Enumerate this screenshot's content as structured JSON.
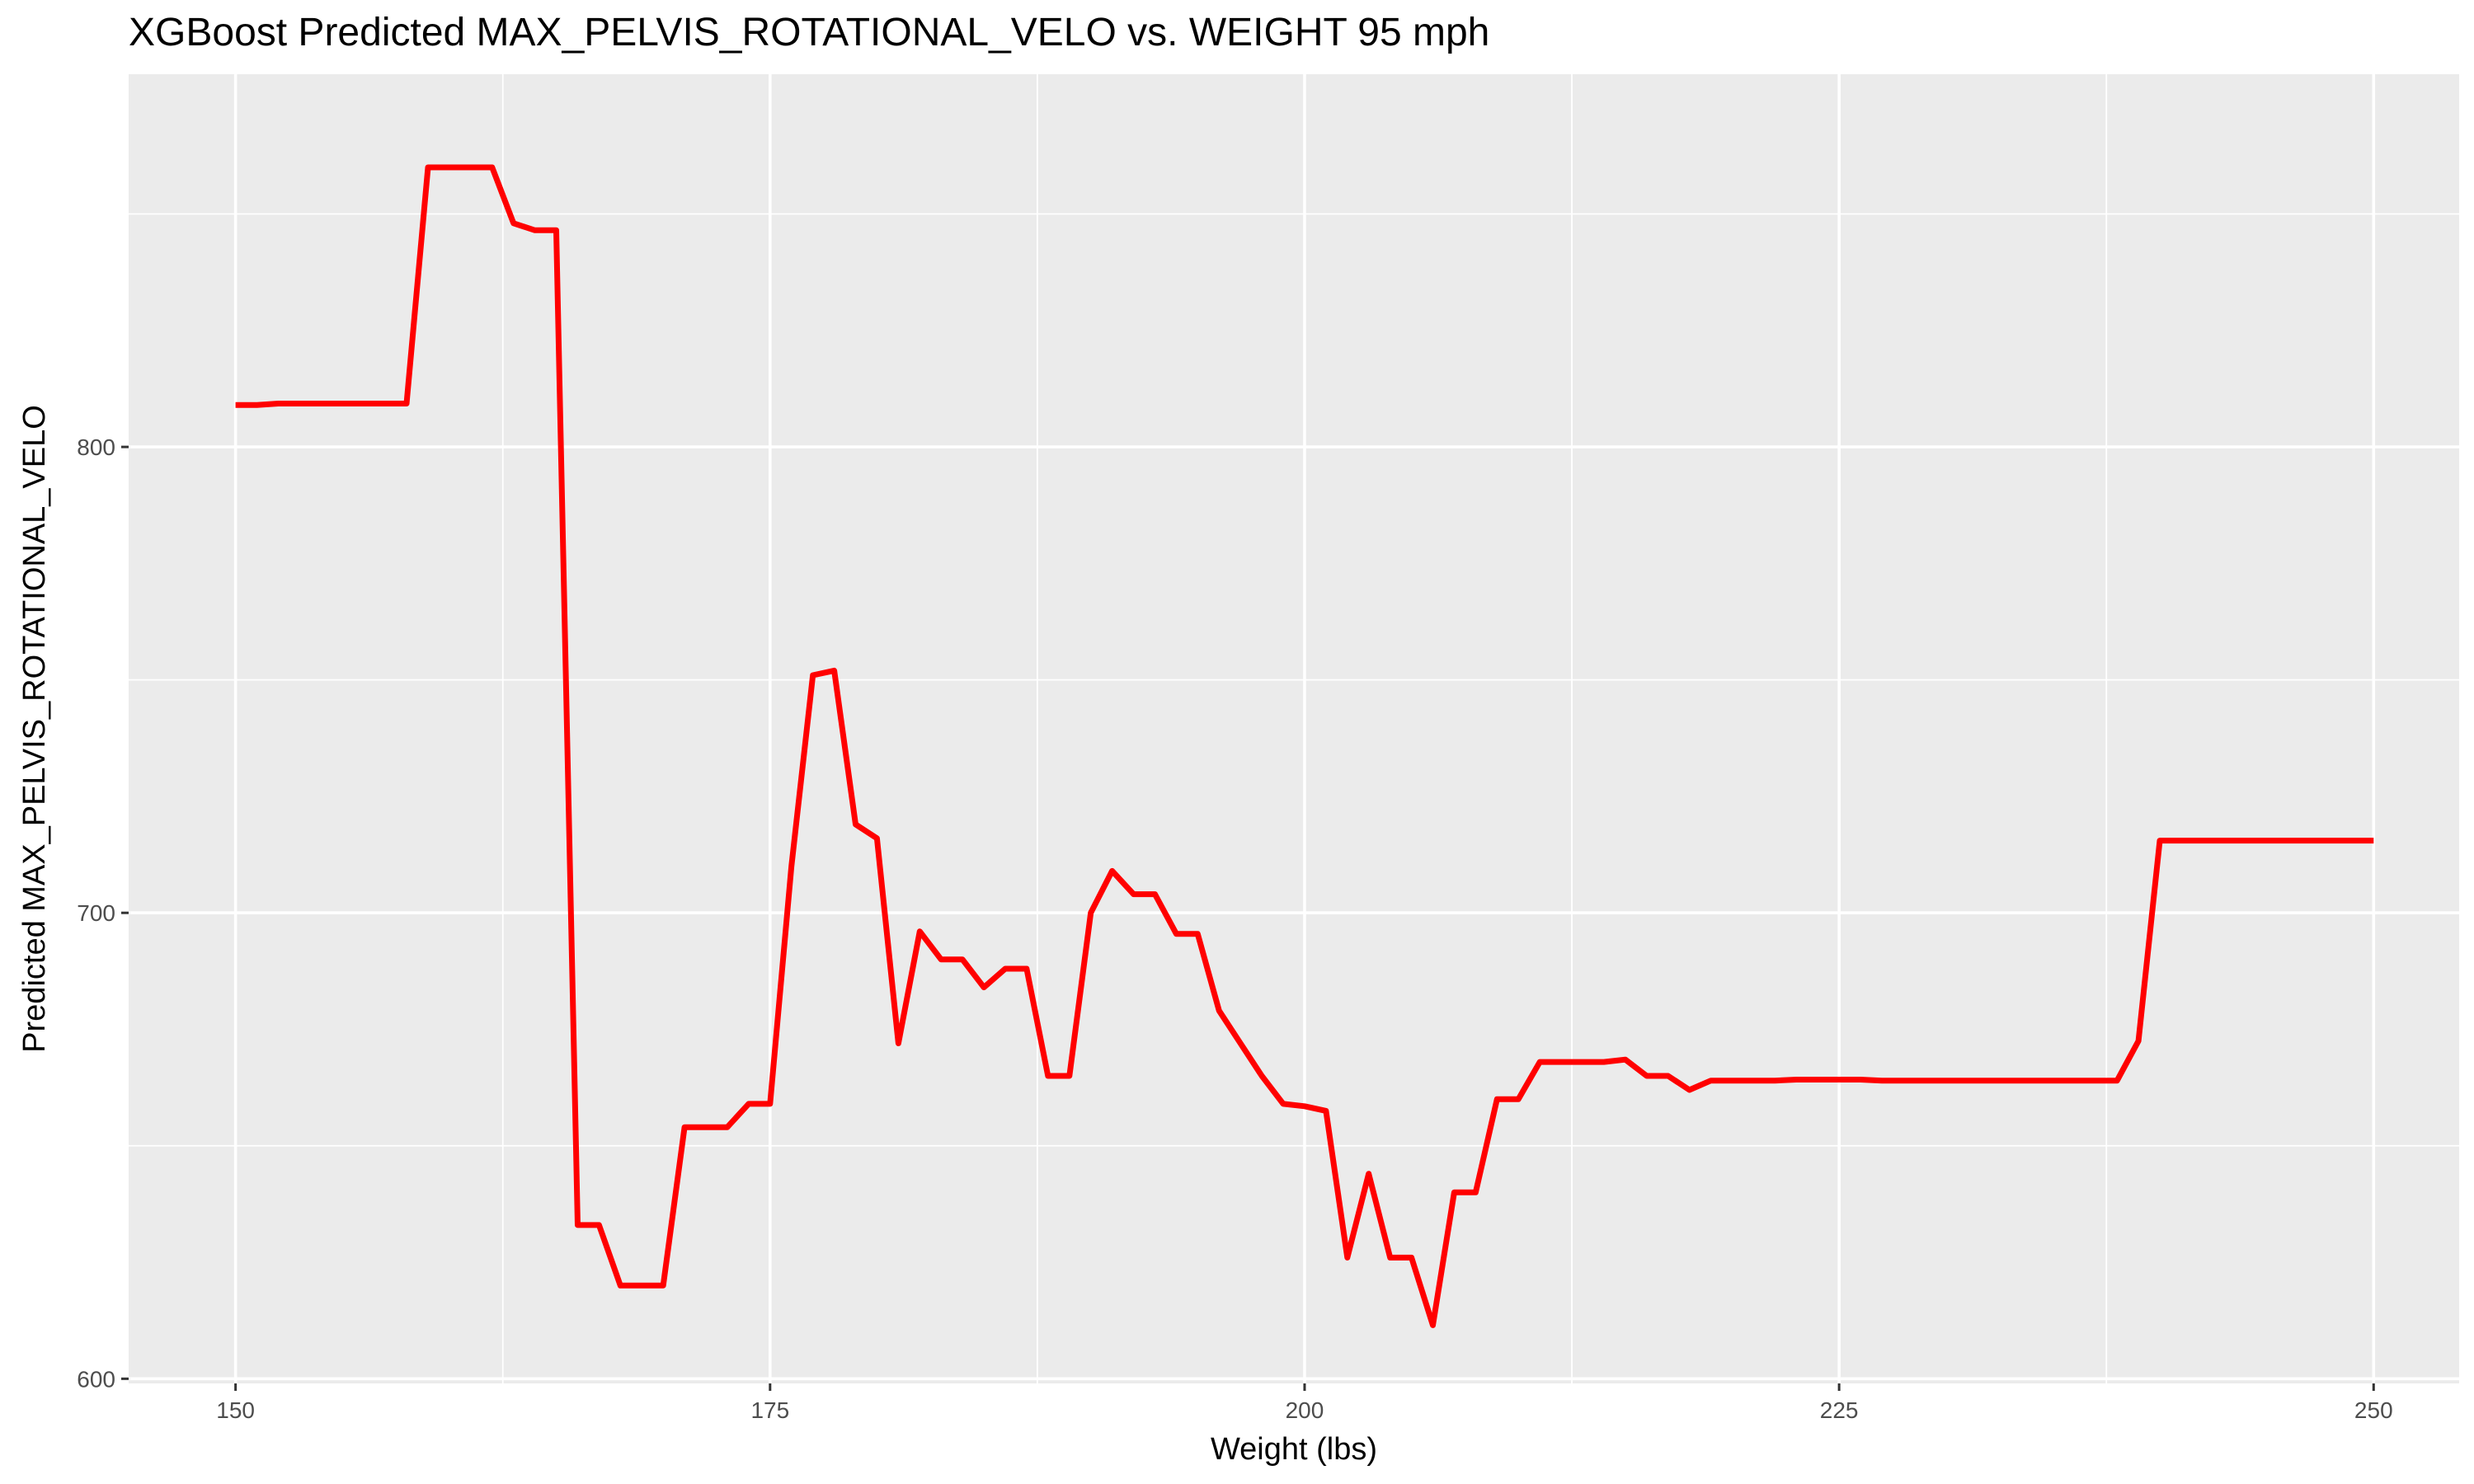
{
  "chart_data": {
    "type": "line",
    "title": "XGBoost Predicted MAX_PELVIS_ROTATIONAL_VELO vs. WEIGHT 95 mph",
    "xlabel": "Weight (lbs)",
    "ylabel": "Predicted MAX_PELVIS_ROTATIONAL_VELO",
    "xlim": [
      145,
      254
    ],
    "ylim": [
      599,
      880
    ],
    "xticks": [
      150,
      175,
      200,
      225,
      250
    ],
    "yticks": [
      600,
      700,
      800
    ],
    "grid": true,
    "legend": "none",
    "line_color": "#ff0000",
    "panel_color": "#ebebeb",
    "series": [
      {
        "x": [
          150,
          151,
          152,
          153,
          154,
          155,
          156,
          157,
          158,
          159,
          160,
          161,
          162,
          163,
          164,
          165,
          166,
          167,
          168,
          169,
          170,
          171,
          172,
          173,
          174,
          175,
          176,
          177,
          178,
          179,
          180,
          181,
          182,
          183,
          184,
          185,
          186,
          187,
          188,
          189,
          190,
          191,
          192,
          193,
          194,
          195,
          196,
          197,
          198,
          199,
          200,
          201,
          202,
          203,
          204,
          205,
          206,
          207,
          208,
          209,
          210,
          211,
          212,
          213,
          214,
          215,
          216,
          217,
          218,
          219,
          220,
          221,
          222,
          223,
          224,
          225,
          226,
          227,
          228,
          229,
          230,
          231,
          232,
          233,
          234,
          235,
          236,
          237,
          238,
          239,
          240,
          241,
          242,
          243,
          244,
          245,
          246,
          247,
          248,
          249,
          250
        ],
        "y": [
          809,
          809,
          809.3,
          809.3,
          809.3,
          809.3,
          809.3,
          809.3,
          809.3,
          860,
          860,
          860,
          860,
          848,
          846.5,
          846.5,
          633,
          633,
          620,
          620,
          620,
          654,
          654,
          654,
          659,
          659,
          710,
          751,
          752,
          719,
          716,
          672,
          696,
          690,
          690,
          684,
          688,
          688,
          665,
          665,
          700,
          709,
          704,
          704,
          695.5,
          695.5,
          679,
          672,
          665,
          659,
          658.5,
          657.5,
          626,
          644,
          626,
          626,
          611.5,
          640,
          640,
          660,
          660,
          668,
          668,
          668,
          668,
          668.5,
          665,
          665,
          662,
          664,
          664,
          664,
          664,
          664.2,
          664.2,
          664.2,
          664.2,
          664,
          664,
          664,
          664,
          664,
          664,
          664,
          664,
          664,
          664,
          664,
          664,
          672.5,
          715.5,
          715.5,
          715.5,
          715.5,
          715.5,
          715.5,
          715.5,
          715.5,
          715.5,
          715.5,
          715.5
        ]
      }
    ]
  }
}
